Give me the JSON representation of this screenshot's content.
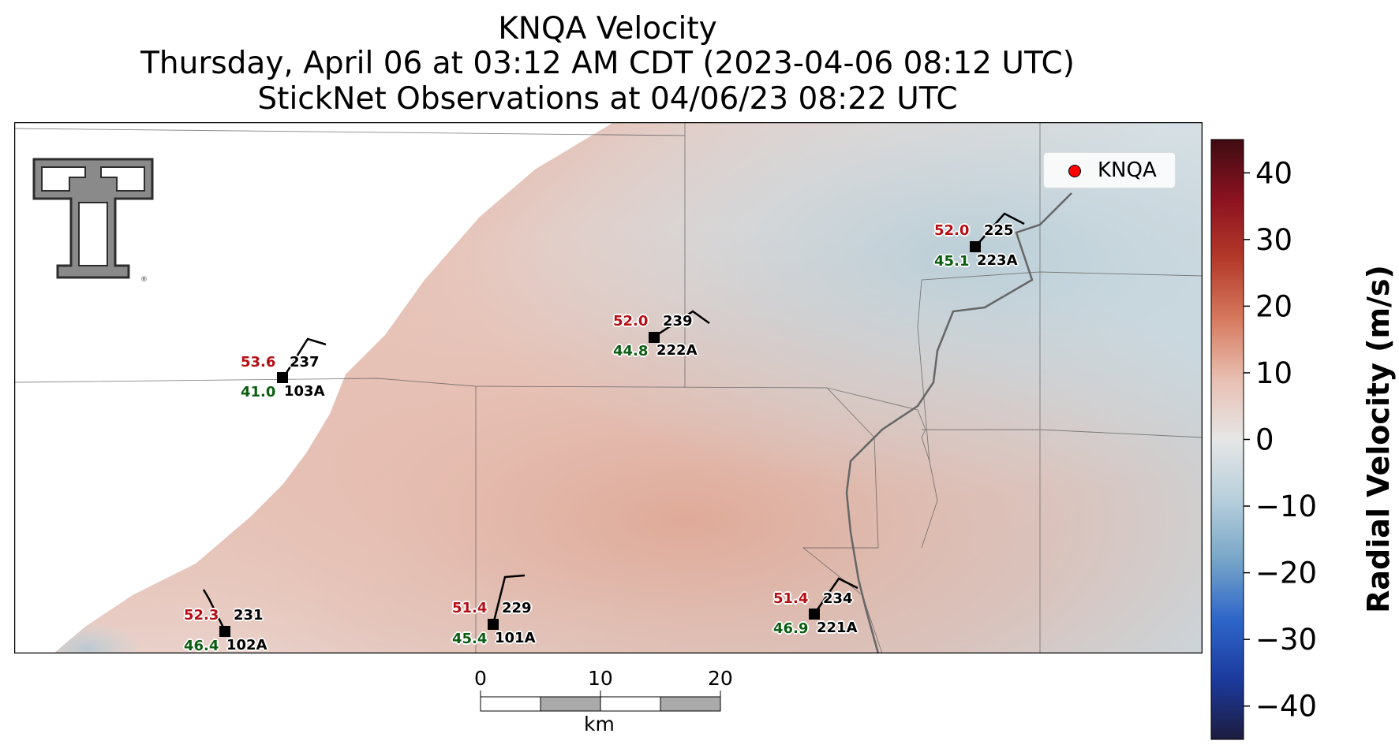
{
  "title": {
    "line1": "KNQA Velocity",
    "line2": "Thursday, April 06 at 03:12 AM CDT (2023-04-06 08:12 UTC)",
    "line3": "StickNet Observations at 04/06/23 08:22 UTC"
  },
  "legend": {
    "label": "KNQA",
    "marker_color": "#ff0000"
  },
  "logo": {
    "icon": "texas-tech-double-t-logo",
    "mark": "®"
  },
  "colorbar": {
    "label": "Radial Velocity (m/s)",
    "ticks": [
      "40",
      "30",
      "20",
      "10",
      "0",
      "−10",
      "−20",
      "−30",
      "−40"
    ],
    "range": [
      -45,
      45
    ],
    "colors": [
      "#1c1c3e",
      "#1c3a9e",
      "#2e66c9",
      "#78a6c8",
      "#b7cfdb",
      "#e6e6e6",
      "#e8bfb2",
      "#d67a5e",
      "#b43a2a",
      "#8c1220",
      "#3f0c12"
    ]
  },
  "scalebar": {
    "labels": [
      "0",
      "10",
      "20"
    ],
    "unit": "km"
  },
  "stations": [
    {
      "id": "103A",
      "temp": "53.6",
      "dewpoint": "41.0",
      "direction": "237"
    },
    {
      "id": "222A",
      "temp": "52.0",
      "dewpoint": "44.8",
      "direction": "239"
    },
    {
      "id": "223A",
      "temp": "52.0",
      "dewpoint": "45.1",
      "direction": "225"
    },
    {
      "id": "102A",
      "temp": "52.3",
      "dewpoint": "46.4",
      "direction": "231"
    },
    {
      "id": "101A",
      "temp": "51.4",
      "dewpoint": "45.4",
      "direction": "229"
    },
    {
      "id": "221A",
      "temp": "51.4",
      "dewpoint": "46.9",
      "direction": "234"
    }
  ]
}
